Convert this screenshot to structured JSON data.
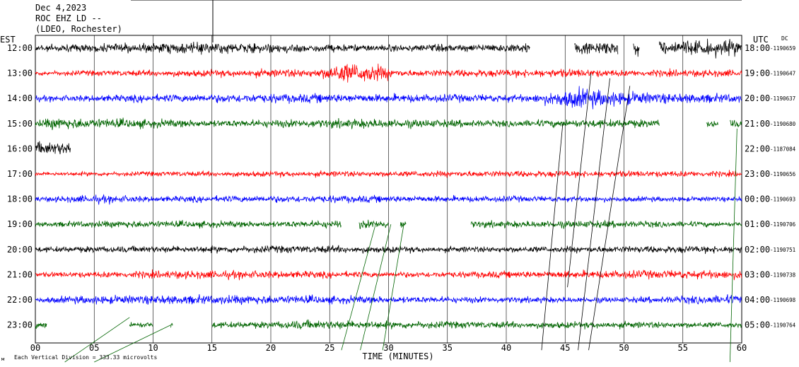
{
  "header": {
    "date": "Dec 4,2023",
    "station": "ROC EHZ LD --",
    "network": "(LDEO, Rochester)"
  },
  "chart_data": {
    "type": "line",
    "title": "",
    "xlabel": "TIME (MINUTES)",
    "xlim": [
      0,
      60
    ],
    "xticks": [
      "00",
      "05",
      "10",
      "15",
      "20",
      "25",
      "30",
      "35",
      "40",
      "45",
      "50",
      "55",
      "60"
    ],
    "left_axis_title": "EST",
    "right_axis_title": "UTC",
    "right_column_header": "DC",
    "footnote": "Each Vertical Division = 333.33 microvolts",
    "footnote_mark": "м",
    "rows": [
      {
        "est": "12:00",
        "utc": "18:00",
        "dc": "-1190659",
        "color": "#000000"
      },
      {
        "est": "13:00",
        "utc": "19:00",
        "dc": "-1190647",
        "color": "#ff0000"
      },
      {
        "est": "14:00",
        "utc": "20:00",
        "dc": "-1190637",
        "color": "#0000ff"
      },
      {
        "est": "15:00",
        "utc": "21:00",
        "dc": "-1190680",
        "color": "#006400"
      },
      {
        "est": "16:00",
        "utc": "22:00",
        "dc": "-1187084",
        "color": "#000000"
      },
      {
        "est": "17:00",
        "utc": "23:00",
        "dc": "-1190656",
        "color": "#ff0000"
      },
      {
        "est": "18:00",
        "utc": "00:00",
        "dc": "-1190693",
        "color": "#0000ff"
      },
      {
        "est": "19:00",
        "utc": "01:00",
        "dc": "-1190706",
        "color": "#006400"
      },
      {
        "est": "20:00",
        "utc": "02:00",
        "dc": "-1190751",
        "color": "#000000"
      },
      {
        "est": "21:00",
        "utc": "03:00",
        "dc": "-1190738",
        "color": "#ff0000"
      },
      {
        "est": "22:00",
        "utc": "04:00",
        "dc": "-1190698",
        "color": "#0000ff"
      },
      {
        "est": "23:00",
        "utc": "05:00",
        "dc": "-1190764",
        "color": "#006400"
      }
    ],
    "series": [
      {
        "segments": [
          [
            0,
            42
          ],
          [
            45.8,
            49.5
          ],
          [
            50.8,
            51.3
          ],
          [
            53,
            60
          ]
        ],
        "amp": [
          [
            0,
            7
          ],
          [
            15,
            12
          ],
          [
            28,
            7
          ],
          [
            38,
            8
          ],
          [
            46,
            14
          ],
          [
            56,
            16
          ]
        ]
      },
      {
        "segments": [
          [
            0,
            60
          ]
        ],
        "amp": [
          [
            0,
            5
          ],
          [
            12,
            7
          ],
          [
            24,
            9
          ],
          [
            26,
            22
          ],
          [
            29,
            18
          ],
          [
            31,
            7
          ],
          [
            45,
            9
          ],
          [
            50,
            7
          ],
          [
            60,
            8
          ]
        ]
      },
      {
        "segments": [
          [
            0,
            60
          ]
        ],
        "amp": [
          [
            0,
            6
          ],
          [
            20,
            10
          ],
          [
            30,
            9
          ],
          [
            42,
            8
          ],
          [
            46,
            22
          ],
          [
            49,
            16
          ],
          [
            53,
            11
          ],
          [
            60,
            9
          ]
        ]
      },
      {
        "segments": [
          [
            0,
            53
          ],
          [
            57,
            58
          ],
          [
            59,
            60
          ]
        ],
        "amp": [
          [
            0,
            6
          ],
          [
            1.5,
            13
          ],
          [
            5,
            11
          ],
          [
            15,
            7
          ],
          [
            28,
            10
          ],
          [
            40,
            7
          ],
          [
            48,
            9
          ],
          [
            53,
            8
          ]
        ]
      },
      {
        "segments": [
          [
            0,
            3
          ]
        ],
        "amp": [
          [
            0,
            14
          ],
          [
            3,
            14
          ]
        ]
      },
      {
        "segments": [
          [
            0,
            60
          ]
        ],
        "amp": [
          [
            0,
            4
          ],
          [
            20,
            6
          ],
          [
            30,
            6
          ],
          [
            45,
            7
          ],
          [
            60,
            6
          ]
        ]
      },
      {
        "segments": [
          [
            0,
            60
          ]
        ],
        "amp": [
          [
            0,
            5
          ],
          [
            5,
            9
          ],
          [
            10,
            6
          ],
          [
            25,
            8
          ],
          [
            31,
            7
          ],
          [
            45,
            6
          ],
          [
            60,
            5
          ]
        ]
      },
      {
        "segments": [
          [
            0,
            26
          ],
          [
            27.5,
            30
          ],
          [
            31,
            31.5
          ],
          [
            37,
            60
          ]
        ],
        "amp": [
          [
            0,
            5
          ],
          [
            8,
            8
          ],
          [
            20,
            6
          ],
          [
            27,
            9
          ],
          [
            40,
            7
          ],
          [
            47,
            8
          ],
          [
            60,
            5
          ]
        ]
      },
      {
        "segments": [
          [
            0,
            60
          ]
        ],
        "amp": [
          [
            0,
            6
          ],
          [
            10,
            7
          ],
          [
            25,
            8
          ],
          [
            35,
            6
          ],
          [
            50,
            7
          ],
          [
            60,
            8
          ]
        ]
      },
      {
        "segments": [
          [
            0,
            60
          ]
        ],
        "amp": [
          [
            0,
            5
          ],
          [
            14,
            9
          ],
          [
            30,
            6
          ],
          [
            45,
            8
          ],
          [
            51,
            9
          ],
          [
            60,
            9
          ]
        ]
      },
      {
        "segments": [
          [
            0,
            60
          ]
        ],
        "amp": [
          [
            0,
            6
          ],
          [
            5,
            9
          ],
          [
            20,
            10
          ],
          [
            30,
            7
          ],
          [
            50,
            6
          ],
          [
            59,
            10
          ]
        ]
      },
      {
        "segments": [
          [
            0,
            1
          ],
          [
            8,
            10
          ],
          [
            11.5,
            11.7
          ],
          [
            15,
            60
          ]
        ],
        "amp": [
          [
            0,
            7
          ],
          [
            10,
            6
          ],
          [
            20,
            7
          ],
          [
            23,
            10
          ],
          [
            30,
            8
          ],
          [
            40,
            7
          ],
          [
            50,
            7
          ],
          [
            60,
            6
          ]
        ]
      }
    ]
  }
}
